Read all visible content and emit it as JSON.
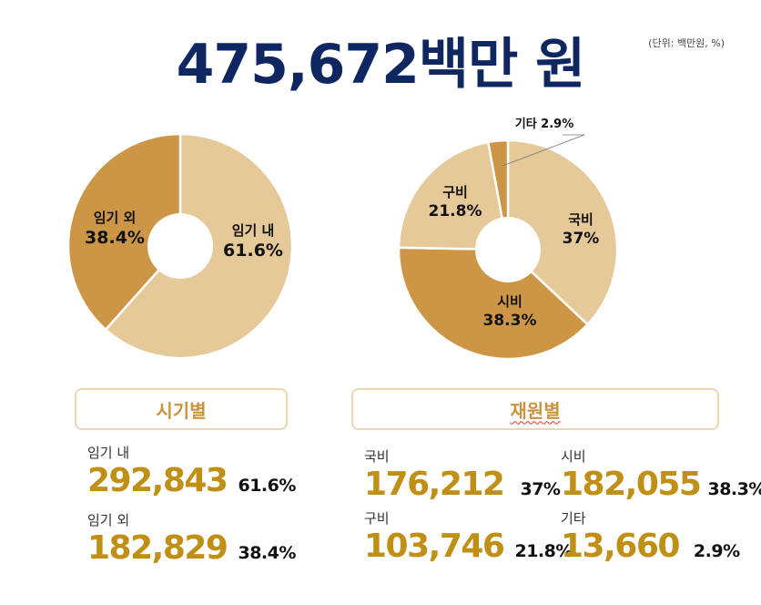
{
  "title": "475,672백만 원",
  "unit_note": "(단위: 백만원, %)",
  "colors": {
    "title": "#0f2760",
    "light": "#e6c998",
    "dark": "#cc9646",
    "number": "#c08f16"
  },
  "chart_data": [
    {
      "type": "pie",
      "donut": true,
      "categories": [
        "임기 내",
        "임기 외"
      ],
      "values": [
        61.6,
        38.4
      ],
      "slice_labels": [
        {
          "name": "임기 내",
          "pct": "61.6%"
        },
        {
          "name": "임기 외",
          "pct": "38.4%"
        }
      ]
    },
    {
      "type": "pie",
      "donut": true,
      "categories": [
        "국비",
        "시비",
        "구비",
        "기타"
      ],
      "values": [
        37,
        38.3,
        21.8,
        2.9
      ],
      "slice_labels": [
        {
          "name": "국비",
          "pct": "37%"
        },
        {
          "name": "시비",
          "pct": "38.3%"
        },
        {
          "name": "구비",
          "pct": "21.8%"
        },
        {
          "name": "기타 2.9%",
          "pct": ""
        }
      ]
    }
  ],
  "panels": {
    "period": {
      "header": "시기별",
      "items": [
        {
          "label": "임기 내",
          "value": "292,843",
          "pct": "61.6%"
        },
        {
          "label": "임기 외",
          "value": "182,829",
          "pct": "38.4%"
        }
      ]
    },
    "source": {
      "header": "재원별",
      "items": [
        {
          "label": "국비",
          "value": "176,212",
          "pct": "37%"
        },
        {
          "label": "시비",
          "value": "182,055",
          "pct": "38.3%"
        },
        {
          "label": "구비",
          "value": "103,746",
          "pct": "21.8%"
        },
        {
          "label": "기타",
          "value": "13,660",
          "pct": "2.9%"
        }
      ]
    }
  }
}
